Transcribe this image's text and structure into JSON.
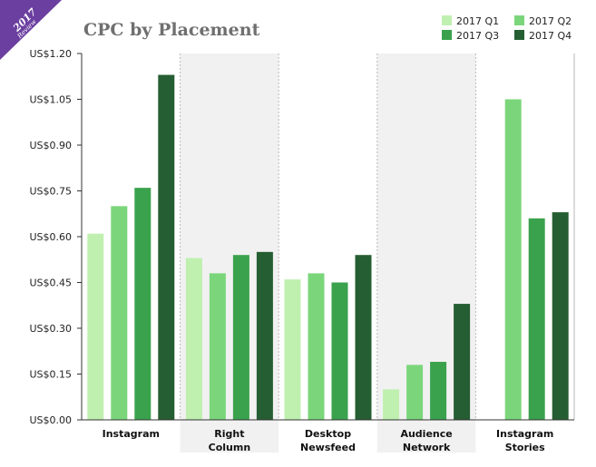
{
  "badge": {
    "year": "2017",
    "word": "Review",
    "color": "#6b3fa0"
  },
  "chart_data": {
    "type": "bar",
    "title": "CPC by Placement",
    "xlabel": "",
    "ylabel": "",
    "ylim": [
      0,
      1.2
    ],
    "y_ticks": [
      "US$0.00",
      "US$0.15",
      "US$0.30",
      "US$0.45",
      "US$0.60",
      "US$0.75",
      "US$0.90",
      "US$1.05",
      "US$1.20"
    ],
    "categories": [
      [
        "Instagram"
      ],
      [
        "Right",
        "Column"
      ],
      [
        "Desktop",
        "Newsfeed"
      ],
      [
        "Audience",
        "Network"
      ],
      [
        "Instagram",
        "Stories"
      ]
    ],
    "shaded_categories": [
      1,
      3
    ],
    "legend_position": "top-right",
    "series": [
      {
        "name": "2017 Q1",
        "color": "#bff0b0",
        "values": [
          0.61,
          0.53,
          0.46,
          0.1,
          null
        ]
      },
      {
        "name": "2017 Q2",
        "color": "#7bd67b",
        "values": [
          0.7,
          0.48,
          0.48,
          0.18,
          1.05
        ]
      },
      {
        "name": "2017 Q3",
        "color": "#3aa24d",
        "values": [
          0.76,
          0.54,
          0.45,
          0.19,
          0.66
        ]
      },
      {
        "name": "2017 Q4",
        "color": "#255e32",
        "values": [
          1.13,
          0.55,
          0.54,
          0.38,
          0.68
        ]
      }
    ]
  }
}
